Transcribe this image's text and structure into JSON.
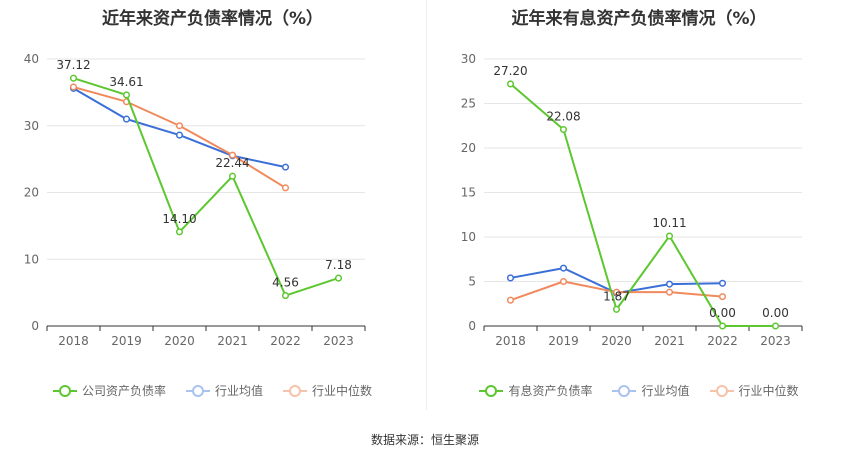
{
  "colors": {
    "company": "#5cc72f",
    "industry_avg": "#3b6fd8",
    "industry_median": "#f08a5d",
    "grid": "#e6e6e6",
    "axis": "#333333"
  },
  "chart_data": [
    {
      "type": "line",
      "title": "近年来资产负债率情况（%）",
      "categories": [
        "2018",
        "2019",
        "2020",
        "2021",
        "2022",
        "2023"
      ],
      "ylim": [
        0,
        40
      ],
      "yticks": [
        0,
        10,
        20,
        30,
        40
      ],
      "series": [
        {
          "name": "公司资产负债率",
          "values": [
            37.12,
            34.61,
            14.1,
            22.44,
            4.56,
            7.18
          ],
          "labels": [
            "37.12",
            "34.61",
            "14.10",
            "22.44",
            "4.56",
            "7.18"
          ]
        },
        {
          "name": "行业均值",
          "values": [
            35.6,
            31.0,
            28.6,
            25.5,
            23.8,
            null
          ]
        },
        {
          "name": "行业中位数",
          "values": [
            35.8,
            33.6,
            30.0,
            25.6,
            20.7,
            null
          ]
        }
      ]
    },
    {
      "type": "line",
      "title": "近年来有息资产负债率情况（%）",
      "categories": [
        "2018",
        "2019",
        "2020",
        "2021",
        "2022",
        "2023"
      ],
      "ylim": [
        0,
        30
      ],
      "yticks": [
        0,
        5,
        10,
        15,
        20,
        25,
        30
      ],
      "series": [
        {
          "name": "有息资产负债率",
          "values": [
            27.2,
            22.08,
            1.87,
            10.11,
            0.0,
            0.0
          ],
          "labels": [
            "27.20",
            "22.08",
            "1.87",
            "10.11",
            "0.00",
            "0.00"
          ]
        },
        {
          "name": "行业均值",
          "values": [
            5.4,
            6.5,
            3.7,
            4.7,
            4.8,
            null
          ]
        },
        {
          "name": "行业中位数",
          "values": [
            2.9,
            5.0,
            3.8,
            3.8,
            3.3,
            null
          ]
        }
      ]
    }
  ],
  "footer": {
    "source": "数据来源：恒生聚源"
  }
}
